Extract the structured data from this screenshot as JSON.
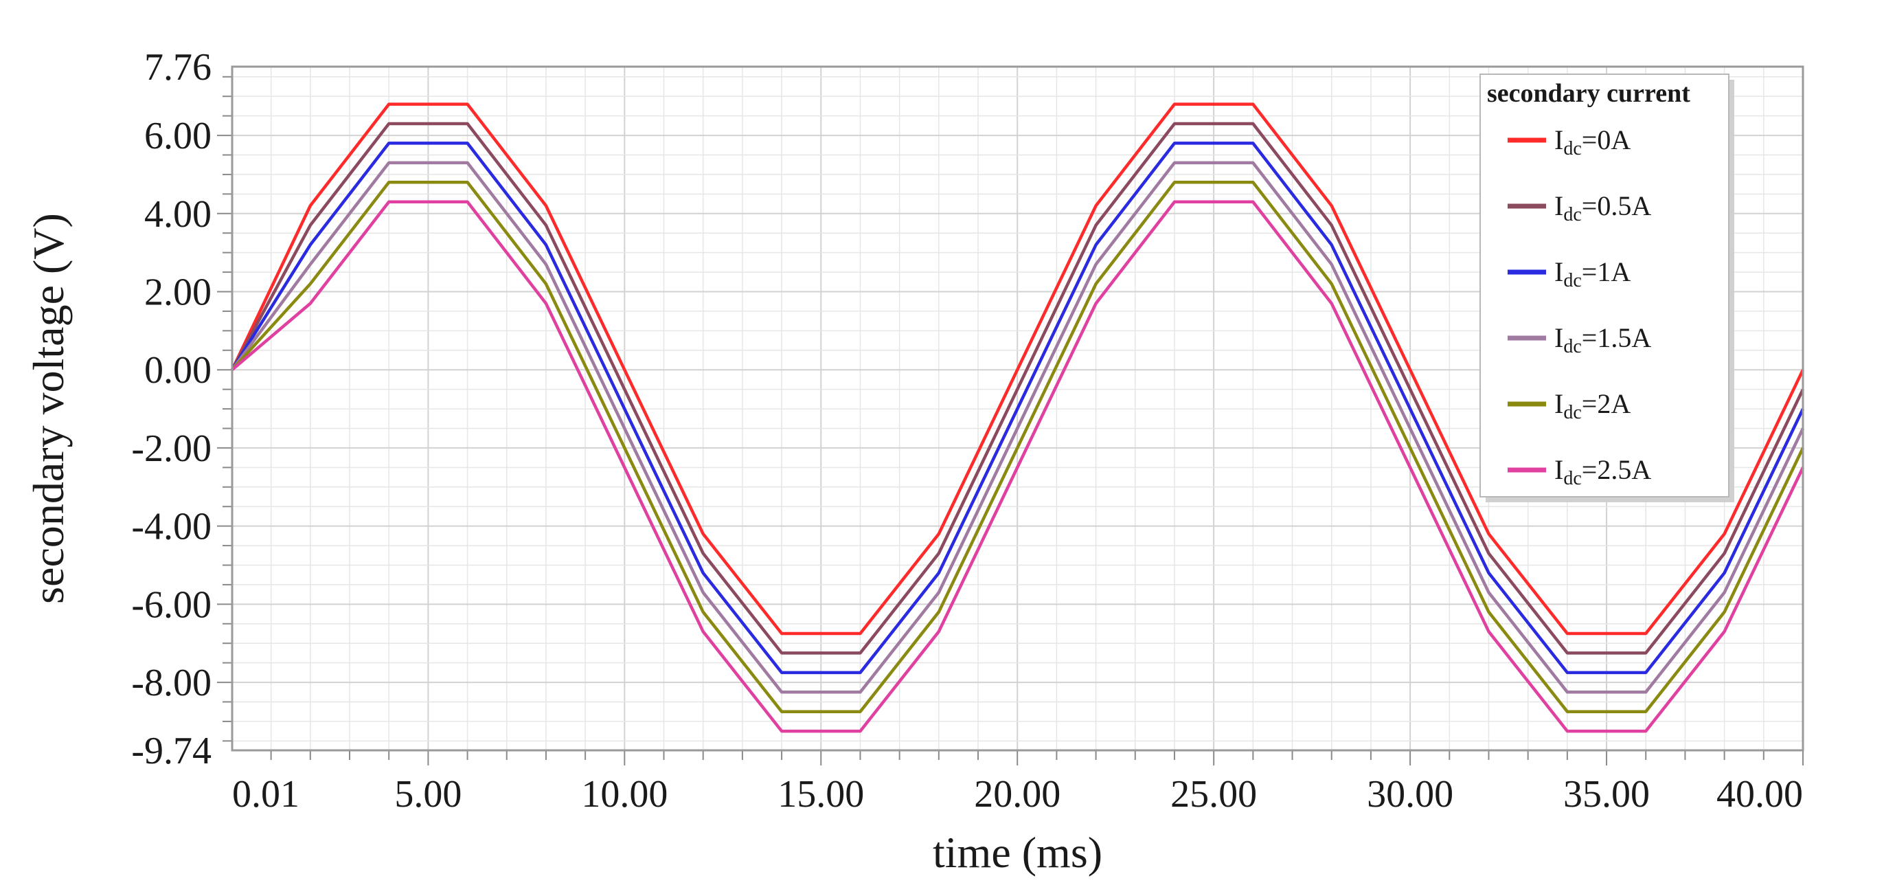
{
  "chart_data": {
    "type": "line",
    "xlabel": "time (ms)",
    "ylabel": "secondary voltage (V)",
    "xlim": [
      0.01,
      40.0
    ],
    "ylim": [
      -9.74,
      7.76
    ],
    "x_ticks": [
      0.01,
      5,
      10,
      15,
      20,
      25,
      30,
      35,
      40
    ],
    "x_tick_labels": [
      "0.01",
      "5.00",
      "10.00",
      "15.00",
      "20.00",
      "25.00",
      "30.00",
      "35.00",
      "40.00"
    ],
    "y_ticks": [
      7.76,
      6,
      4,
      2,
      0,
      -2,
      -4,
      -6,
      -8,
      -9.74
    ],
    "y_tick_labels": [
      "7.76",
      "6.00",
      "4.00",
      "2.00",
      "0.00",
      "-2.00",
      "-4.00",
      "-6.00",
      "-8.00",
      "-9.74"
    ],
    "grid": true,
    "legend": {
      "title": "secondary current",
      "position": "top-right"
    },
    "x": [
      0.01,
      2,
      4,
      6,
      8,
      10,
      12,
      14,
      16,
      18,
      20,
      22,
      24,
      26,
      28,
      30,
      32,
      34,
      36,
      38,
      40
    ],
    "series": [
      {
        "name": "Idc=0A",
        "label_main": "I",
        "label_sub": "dc",
        "label_rest": "=0A",
        "color": "#ff2a2a",
        "values": [
          0,
          4.2,
          6.8,
          6.8,
          4.2,
          0,
          -4.2,
          -6.75,
          -6.75,
          -4.2,
          0,
          4.2,
          6.8,
          6.8,
          4.2,
          0,
          -4.2,
          -6.75,
          -6.75,
          -4.2,
          0
        ]
      },
      {
        "name": "Idc=0.5A",
        "label_main": "I",
        "label_sub": "dc",
        "label_rest": "=0.5A",
        "color": "#8b4a5e",
        "values": [
          0,
          3.7,
          6.3,
          6.3,
          3.7,
          -0.5,
          -4.7,
          -7.25,
          -7.25,
          -4.7,
          -0.5,
          3.7,
          6.3,
          6.3,
          3.7,
          -0.5,
          -4.7,
          -7.25,
          -7.25,
          -4.7,
          -0.5
        ]
      },
      {
        "name": "Idc=1A",
        "label_main": "I",
        "label_sub": "dc",
        "label_rest": "=1A",
        "color": "#2a2ae0",
        "values": [
          0,
          3.2,
          5.8,
          5.8,
          3.2,
          -1.0,
          -5.2,
          -7.75,
          -7.75,
          -5.2,
          -1.0,
          3.2,
          5.8,
          5.8,
          3.2,
          -1.0,
          -5.2,
          -7.75,
          -7.75,
          -5.2,
          -1.0
        ]
      },
      {
        "name": "Idc=1.5A",
        "label_main": "I",
        "label_sub": "dc",
        "label_rest": "=1.5A",
        "color": "#a07aa0",
        "values": [
          0,
          2.7,
          5.3,
          5.3,
          2.7,
          -1.5,
          -5.7,
          -8.25,
          -8.25,
          -5.7,
          -1.5,
          2.7,
          5.3,
          5.3,
          2.7,
          -1.5,
          -5.7,
          -8.25,
          -8.25,
          -5.7,
          -1.5
        ]
      },
      {
        "name": "Idc=2A",
        "label_main": "I",
        "label_sub": "dc",
        "label_rest": "=2A",
        "color": "#8a8a10",
        "values": [
          0,
          2.2,
          4.8,
          4.8,
          2.2,
          -2.0,
          -6.2,
          -8.75,
          -8.75,
          -6.2,
          -2.0,
          2.2,
          4.8,
          4.8,
          2.2,
          -2.0,
          -6.2,
          -8.75,
          -8.75,
          -6.2,
          -2.0
        ]
      },
      {
        "name": "Idc=2.5A",
        "label_main": "I",
        "label_sub": "dc",
        "label_rest": "=2.5A",
        "color": "#e040a0",
        "values": [
          0,
          1.7,
          4.3,
          4.3,
          1.7,
          -2.5,
          -6.7,
          -9.25,
          -9.25,
          -6.7,
          -2.5,
          1.7,
          4.3,
          4.3,
          1.7,
          -2.5,
          -6.7,
          -9.25,
          -9.25,
          -6.7,
          -2.5
        ]
      }
    ]
  }
}
